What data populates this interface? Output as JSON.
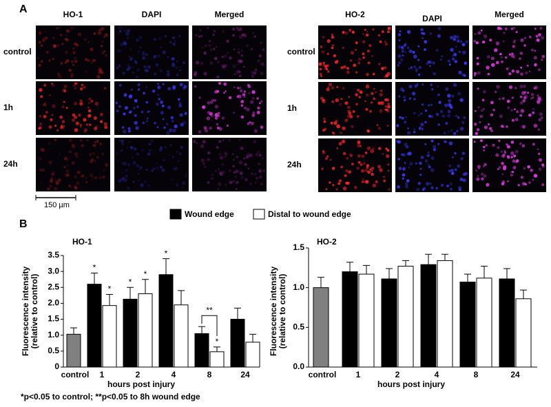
{
  "panel_a": {
    "label": "A",
    "scale_bar": "150 µm",
    "left": {
      "columns": [
        "HO-1",
        "DAPI",
        "Merged"
      ],
      "rows": [
        "control",
        "1h",
        "24h"
      ]
    },
    "right": {
      "columns": [
        "HO-2",
        "DAPI",
        "Merged"
      ],
      "rows": [
        "control",
        "1h",
        "24h"
      ]
    }
  },
  "panel_b": {
    "label": "B"
  },
  "chart_data": [
    {
      "type": "bar",
      "title": "HO-1",
      "x_label": "hours post injury",
      "y_label": [
        "Fluorescence intensity",
        "(relative to control)"
      ],
      "footnote": "*p<0.05 to control; **p<0.05 to 8h wound edge",
      "bracket_label": "**",
      "categories": [
        "control",
        "1",
        "2",
        "4",
        "8",
        "24"
      ],
      "ylim": [
        0,
        3.5
      ],
      "yticks": [
        0,
        0.5,
        {
          "value": 1,
          "label": "1.0"
        },
        1.5,
        {
          "value": 2,
          "label": "2.0"
        },
        2.5,
        {
          "value": 3,
          "label": "3.0"
        },
        3.5
      ],
      "grid": false,
      "series": [
        {
          "color": "#808080",
          "values": [
            1.03,
            null,
            null,
            null,
            null,
            null
          ],
          "errors": [
            0.2,
            null,
            null,
            null,
            null,
            null
          ],
          "stars": [
            null,
            null,
            null,
            null,
            null,
            null
          ]
        },
        {
          "name": "Wound edge",
          "color": "#000000",
          "values": [
            null,
            2.6,
            2.13,
            2.9,
            1.05,
            1.5
          ],
          "errors": [
            null,
            0.35,
            0.37,
            0.5,
            0.22,
            0.35
          ],
          "stars": [
            null,
            "*",
            "*",
            "*",
            null,
            null
          ]
        },
        {
          "name": "Distal to wound edge",
          "color": "#ffffff",
          "values": [
            null,
            1.93,
            2.3,
            1.95,
            0.48,
            0.78
          ],
          "errors": [
            null,
            0.35,
            0.45,
            0.45,
            0.15,
            0.25
          ],
          "stars": [
            null,
            "*",
            "*",
            null,
            "*",
            null
          ]
        }
      ]
    },
    {
      "type": "bar",
      "title": "HO-2",
      "x_label": "hours post injury",
      "y_label": [
        "Fluorescence intensity",
        "(relative to control)"
      ],
      "categories": [
        "control",
        "1",
        "2",
        "4",
        "8",
        "24"
      ],
      "ylim": [
        0,
        1.5
      ],
      "yticks": [
        {
          "value": 0,
          "label": "0.0"
        },
        0.5,
        {
          "value": 1,
          "label": "1.0"
        },
        1.5
      ],
      "grid": false,
      "series": [
        {
          "color": "#808080",
          "values": [
            1.0,
            null,
            null,
            null,
            null,
            null
          ],
          "errors": [
            0.13,
            null,
            null,
            null,
            null,
            null
          ]
        },
        {
          "color": "#000000",
          "values": [
            null,
            1.2,
            1.11,
            1.29,
            1.07,
            1.11
          ],
          "errors": [
            null,
            0.12,
            0.13,
            0.13,
            0.1,
            0.13
          ]
        },
        {
          "color": "#ffffff",
          "values": [
            null,
            1.17,
            1.27,
            1.34,
            1.12,
            0.86
          ],
          "errors": [
            null,
            0.11,
            0.07,
            0.08,
            0.15,
            0.11
          ]
        }
      ]
    }
  ]
}
